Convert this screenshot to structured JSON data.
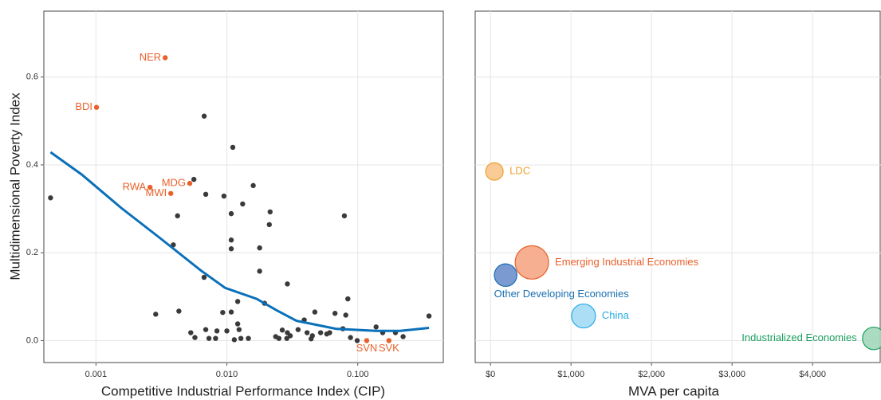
{
  "chart_data": [
    {
      "type": "scatter",
      "x_label": "Competitive Industrial Performance Index (CIP)",
      "y_label": "Multidimensional Poverty Index",
      "log_x": true,
      "grid": true,
      "xlim": [
        0.0004,
        0.45
      ],
      "ylim": [
        -0.05,
        0.75
      ],
      "xticks": [
        {
          "value": 0.001,
          "label": "0.001"
        },
        {
          "value": 0.01,
          "label": "0.010"
        },
        {
          "value": 0.1,
          "label": "0.100"
        }
      ],
      "yticks": [
        {
          "value": 0,
          "label": "0.0"
        },
        0.2,
        0.4,
        0.6
      ],
      "points": {
        "color": "#3a3a3a",
        "x": [
          0.00045,
          0.00286,
          0.00671,
          0.0111,
          0.0056,
          0.0069,
          0.0095,
          0.0042,
          0.0132,
          0.0159,
          0.0108,
          0.0214,
          0.0211,
          0.079,
          0.0039,
          0.0108,
          0.0108,
          0.0178,
          0.0178,
          0.0067,
          0.029,
          0.0121,
          0.0194,
          0.084,
          0.0043,
          0.0093,
          0.0108,
          0.039,
          0.047,
          0.067,
          0.081,
          0.35,
          0.0053,
          0.0069,
          0.0084,
          0.01,
          0.0121,
          0.0124,
          0.0073,
          0.0082,
          0.0114,
          0.0128,
          0.0146,
          0.0236,
          0.025,
          0.0265,
          0.0287,
          0.0305,
          0.035,
          0.041,
          0.045,
          0.052,
          0.058,
          0.061,
          0.077,
          0.088,
          0.099,
          0.138,
          0.155,
          0.194,
          0.222,
          0.044,
          0.0057,
          0.029
        ],
        "y": [
          0.325,
          0.06,
          0.511,
          0.44,
          0.367,
          0.333,
          0.329,
          0.284,
          0.311,
          0.353,
          0.289,
          0.293,
          0.264,
          0.284,
          0.218,
          0.229,
          0.209,
          0.211,
          0.158,
          0.144,
          0.129,
          0.089,
          0.085,
          0.095,
          0.067,
          0.064,
          0.065,
          0.047,
          0.065,
          0.062,
          0.058,
          0.056,
          0.018,
          0.025,
          0.022,
          0.022,
          0.038,
          0.025,
          0.005,
          0.005,
          0.002,
          0.005,
          0.005,
          0.009,
          0.005,
          0.024,
          0.005,
          0.011,
          0.025,
          0.018,
          0.011,
          0.018,
          0.015,
          0.018,
          0.027,
          0.007,
          0.0,
          0.031,
          0.018,
          0.018,
          0.009,
          0.004,
          0.007,
          0.018
        ]
      },
      "highlighted": {
        "color": "#e8612c",
        "labels": [
          "NER",
          "BDI",
          "RWA",
          "MDG",
          "MWI",
          "SVN",
          "SVK"
        ],
        "x": [
          0.00338,
          0.00101,
          0.00259,
          0.00521,
          0.00373,
          0.117,
          0.173
        ],
        "y": [
          0.644,
          0.531,
          0.349,
          0.358,
          0.335,
          0.0,
          0.0
        ]
      },
      "trend": {
        "color": "#0a70b9",
        "x": [
          0.00045,
          0.00078,
          0.00156,
          0.0031,
          0.0063,
          0.0097,
          0.0169,
          0.024,
          0.034,
          0.068,
          0.138,
          0.21,
          0.35
        ],
        "y": [
          0.429,
          0.378,
          0.302,
          0.233,
          0.16,
          0.12,
          0.095,
          0.069,
          0.045,
          0.027,
          0.022,
          0.022,
          0.029
        ]
      }
    },
    {
      "type": "bubble",
      "x_label": "MVA per capita",
      "grid": true,
      "xlim": [
        -190,
        4850
      ],
      "ylim": [
        -0.05,
        0.75
      ],
      "xticks": [
        {
          "value": 0,
          "label": "$0"
        },
        {
          "value": 1000,
          "label": "$1,000"
        },
        {
          "value": 2000,
          "label": "$2,000"
        },
        {
          "value": 3000,
          "label": "$3,000"
        },
        {
          "value": 4000,
          "label": "$4,000"
        }
      ],
      "yticks": [
        0,
        0.2,
        0.4,
        0.6
      ],
      "categories": [
        "LDC",
        "Emerging Industrial Economies",
        "Other Developing Economies",
        "China",
        "Industrialized Economies"
      ],
      "x": [
        49,
        514,
        188,
        1156,
        4760
      ],
      "values": [
        0.385,
        0.178,
        0.149,
        0.056,
        0.005
      ],
      "sizes": [
        1.2,
        4.4,
        2.0,
        2.25,
        2.0
      ],
      "colors": [
        "#f9c48c",
        "#f5a684",
        "#6b8fcc",
        "#a3dcf5",
        "#a2d8bb"
      ],
      "edge_colors": [
        "#f0a030",
        "#e8612c",
        "#1a6fb0",
        "#29abe2",
        "#1a9e5e"
      ]
    }
  ]
}
